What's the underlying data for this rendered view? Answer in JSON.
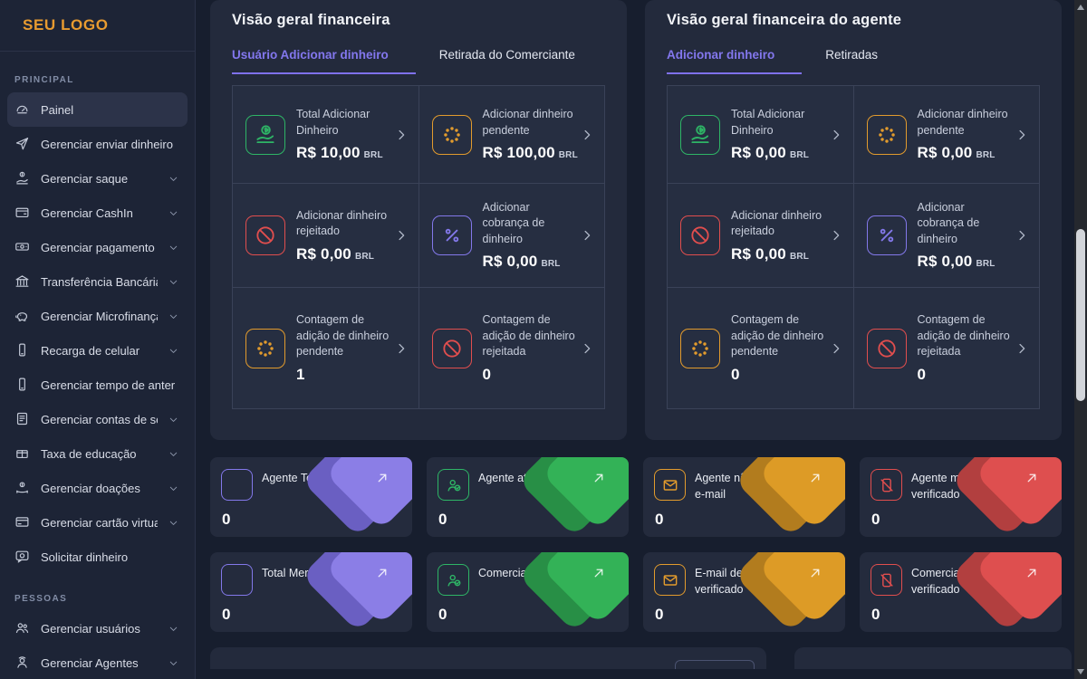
{
  "colors": {
    "logo_orange": "#e89b30",
    "accent_purple": "#8377ee",
    "purple": "#8378ea",
    "green": "#2eb566",
    "orange": "#e29b2d",
    "red": "#e14e4e",
    "badge_front": {
      "purple": "#8b7ee6",
      "green": "#33b257",
      "orange": "#dd9b26",
      "red": "#de4f4f"
    },
    "badge_back": {
      "purple": "#6a5fc2",
      "green": "#288f46",
      "orange": "#b27c1e",
      "red": "#b23f3f"
    }
  },
  "sidebar": {
    "logo_text": "SEU LOGO",
    "sections": [
      {
        "label": "PRINCIPAL",
        "items": [
          {
            "label": "Painel",
            "icon": "gauge-icon",
            "active": true,
            "chevron": false
          },
          {
            "label": "Gerenciar enviar dinheiro",
            "icon": "send-icon",
            "active": false,
            "chevron": false
          },
          {
            "label": "Gerenciar saque",
            "icon": "hand-coin-icon",
            "active": false,
            "chevron": true
          },
          {
            "label": "Gerenciar CashIn",
            "icon": "wallet-icon",
            "active": false,
            "chevron": true
          },
          {
            "label": "Gerenciar pagamento",
            "icon": "banknote-icon",
            "active": false,
            "chevron": true
          },
          {
            "label": "Transferência Bancária",
            "icon": "bank-icon",
            "active": false,
            "chevron": true
          },
          {
            "label": "Gerenciar Microfinanças",
            "icon": "piggy-bank-icon",
            "active": false,
            "chevron": true
          },
          {
            "label": "Recarga de celular",
            "icon": "phone-icon",
            "active": false,
            "chevron": true
          },
          {
            "label": "Gerenciar tempo de anter",
            "icon": "phone-icon",
            "active": false,
            "chevron": false
          },
          {
            "label": "Gerenciar contas de serviç",
            "icon": "file-invoice-icon",
            "active": false,
            "chevron": true
          },
          {
            "label": "Taxa de educação",
            "icon": "education-icon",
            "active": false,
            "chevron": true
          },
          {
            "label": "Gerenciar doações",
            "icon": "donation-icon",
            "active": false,
            "chevron": true
          },
          {
            "label": "Gerenciar cartão virtual",
            "icon": "credit-card-icon",
            "active": false,
            "chevron": true
          },
          {
            "label": "Solicitar dinheiro",
            "icon": "money-request-icon",
            "active": false,
            "chevron": false
          }
        ]
      },
      {
        "label": "PESSOAS",
        "items": [
          {
            "label": "Gerenciar usuários",
            "icon": "users-icon",
            "active": false,
            "chevron": true
          },
          {
            "label": "Gerenciar Agentes",
            "icon": "agent-icon",
            "active": false,
            "chevron": true
          }
        ]
      }
    ]
  },
  "panels": [
    {
      "title": "Visão geral financeira",
      "tabs": [
        {
          "label": "Usuário Adicionar dinheiro",
          "active": true
        },
        {
          "label": "Retirada do Comerciante",
          "active": false
        }
      ],
      "cards": [
        {
          "label": "Total Adicionar Dinheiro",
          "value": "R$ 10,00",
          "suffix": "BRL",
          "icon": "hand-dollar-icon",
          "color": "green"
        },
        {
          "label": "Adicionar dinheiro pendente",
          "value": "R$ 100,00",
          "suffix": "BRL",
          "icon": "spinner-icon",
          "color": "orange"
        },
        {
          "label": "Adicionar dinheiro rejeitado",
          "value": "R$ 0,00",
          "suffix": "BRL",
          "icon": "ban-icon",
          "color": "red"
        },
        {
          "label": "Adicionar cobrança de dinheiro",
          "value": "R$ 0,00",
          "suffix": "BRL",
          "icon": "percent-icon",
          "color": "purple"
        },
        {
          "label": "Contagem de adição de dinheiro pendente",
          "value": "1",
          "suffix": "",
          "icon": "spinner-icon",
          "color": "orange"
        },
        {
          "label": "Contagem de adição de dinheiro rejeitada",
          "value": "0",
          "suffix": "",
          "icon": "ban-icon",
          "color": "red"
        }
      ]
    },
    {
      "title": "Visão geral financeira do agente",
      "tabs": [
        {
          "label": "Adicionar dinheiro",
          "active": true
        },
        {
          "label": "Retiradas",
          "active": false
        }
      ],
      "cards": [
        {
          "label": "Total Adicionar Dinheiro",
          "value": "R$ 0,00",
          "suffix": "BRL",
          "icon": "hand-dollar-icon",
          "color": "green"
        },
        {
          "label": "Adicionar dinheiro pendente",
          "value": "R$ 0,00",
          "suffix": "BRL",
          "icon": "spinner-icon",
          "color": "orange"
        },
        {
          "label": "Adicionar dinheiro rejeitado",
          "value": "R$ 0,00",
          "suffix": "BRL",
          "icon": "ban-icon",
          "color": "red"
        },
        {
          "label": "Adicionar cobrança de dinheiro",
          "value": "R$ 0,00",
          "suffix": "BRL",
          "icon": "percent-icon",
          "color": "purple"
        },
        {
          "label": "Contagem de adição de dinheiro pendente",
          "value": "0",
          "suffix": "",
          "icon": "spinner-icon",
          "color": "orange"
        },
        {
          "label": "Contagem de adição de dinheiro rejeitada",
          "value": "0",
          "suffix": "",
          "icon": "ban-icon",
          "color": "red"
        }
      ]
    }
  ],
  "stat_cards": [
    {
      "label": "Agente Total",
      "value": "0",
      "icon": "square-icon",
      "color": "purple"
    },
    {
      "label": "Agente ativo",
      "value": "0",
      "icon": "user-check-icon",
      "color": "green"
    },
    {
      "label": "Agente não verificado por e-mail",
      "value": "0",
      "icon": "envelope-icon",
      "color": "orange"
    },
    {
      "label": "Agente móvel não verificado",
      "value": "0",
      "icon": "phone-slash-icon",
      "color": "red"
    },
    {
      "label": "Total Merchant",
      "value": "0",
      "icon": "square-icon",
      "color": "purple"
    },
    {
      "label": "Comerciante Ativo",
      "value": "0",
      "icon": "user-check-icon",
      "color": "green"
    },
    {
      "label": "E-mail de comerciante não verificado",
      "value": "0",
      "icon": "envelope-icon",
      "color": "orange"
    },
    {
      "label": "Comerciante móvel não verificado",
      "value": "0",
      "icon": "phone-slash-icon",
      "color": "red"
    }
  ]
}
